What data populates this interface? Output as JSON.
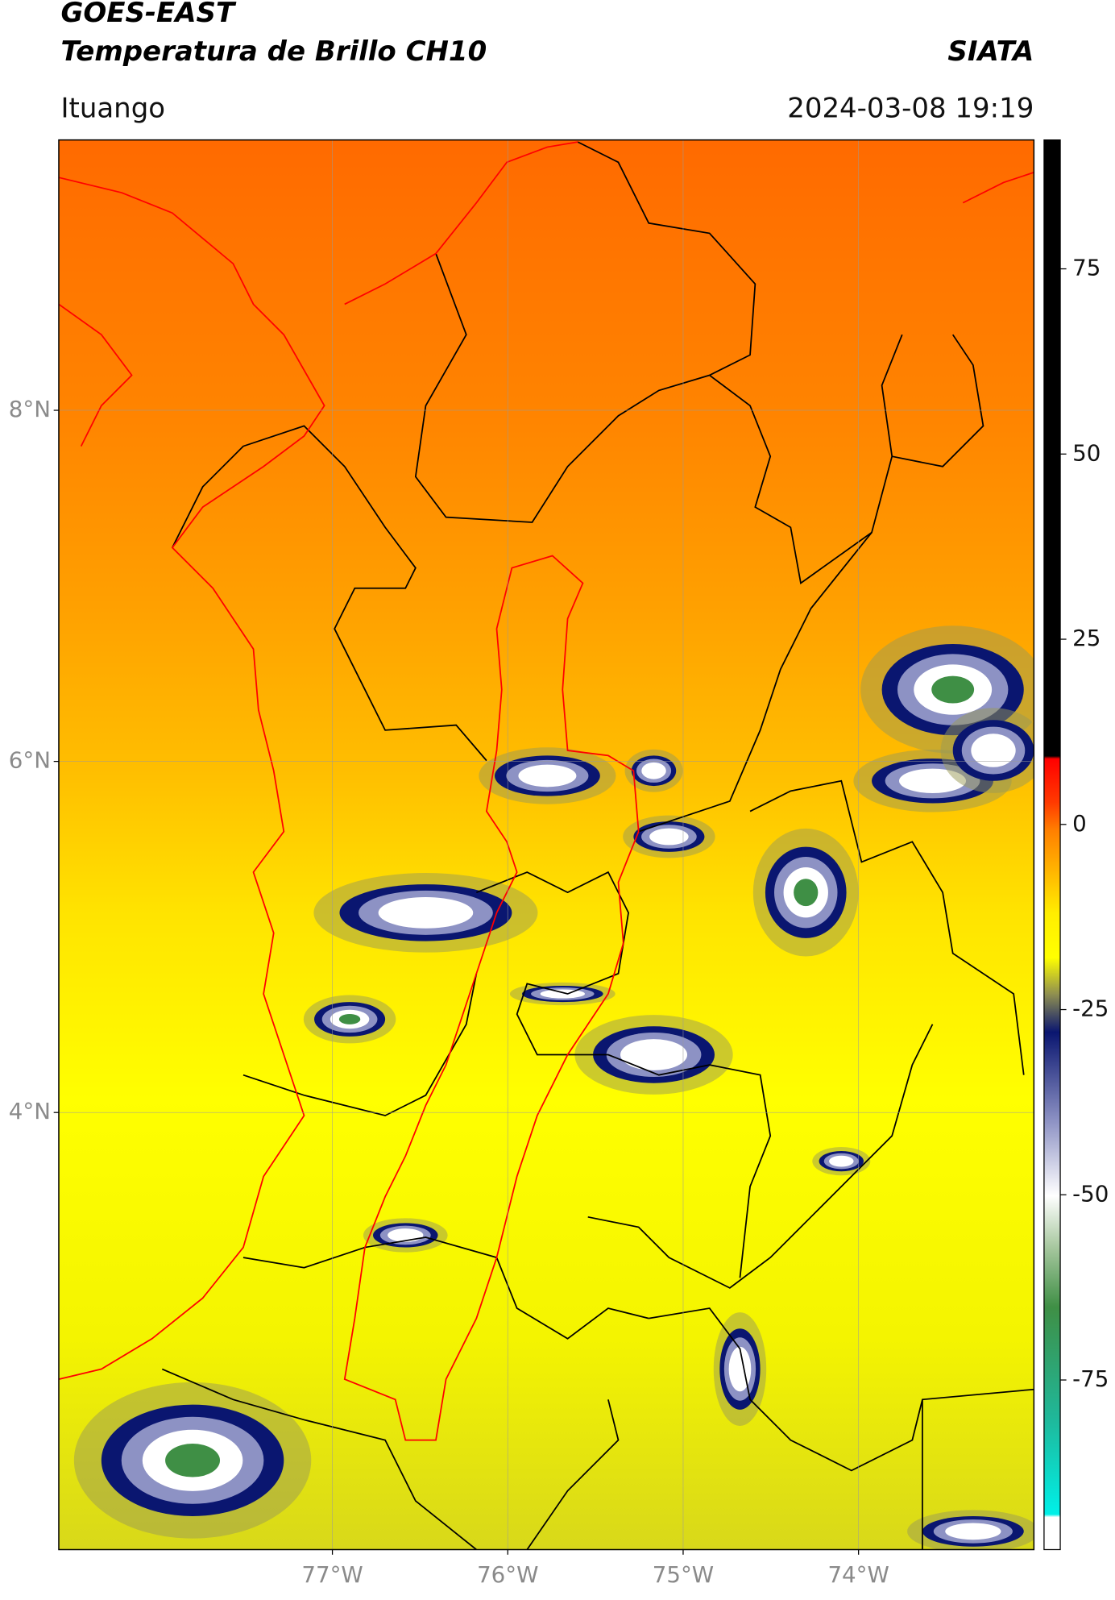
{
  "header": {
    "title": "GOES-EAST",
    "subtitle": "Temperatura de Brillo CH10",
    "source": "SIATA",
    "region": "Ituango",
    "timestamp": "2024-03-08 19:19"
  },
  "map": {
    "lon_range": [
      -78.56,
      -73.0
    ],
    "lat_range": [
      1.51,
      9.54
    ],
    "lat_ticks": [
      {
        "value": 8,
        "label": "8°N"
      },
      {
        "value": 6,
        "label": "6°N"
      },
      {
        "value": 4,
        "label": "4°N"
      }
    ],
    "lon_ticks": [
      {
        "value": -77,
        "label": "77°W"
      },
      {
        "value": -76,
        "label": "76°W"
      },
      {
        "value": -75,
        "label": "75°W"
      },
      {
        "value": -74,
        "label": "74°W"
      }
    ]
  },
  "colorbar": {
    "range": [
      -97.9,
      92.4
    ],
    "ticks": [
      75,
      50,
      25,
      0,
      -25,
      -50,
      -75
    ]
  }
}
